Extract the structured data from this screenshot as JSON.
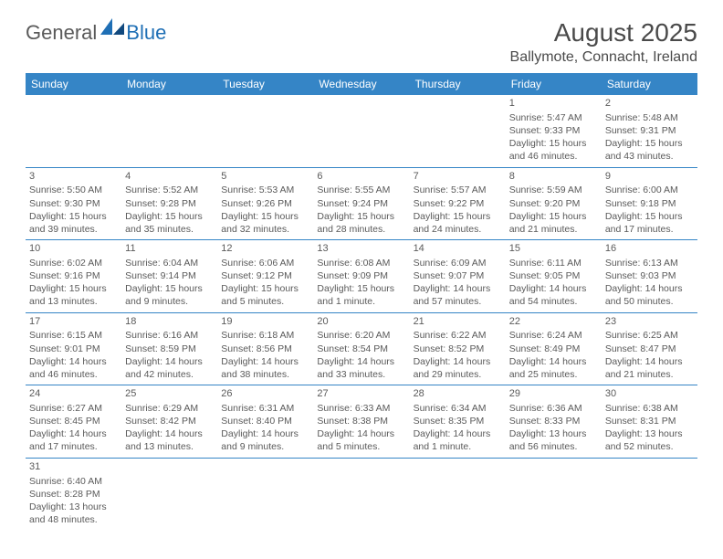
{
  "logo": {
    "general": "General",
    "blue": "Blue"
  },
  "title": "August 2025",
  "location": "Ballymote, Connacht, Ireland",
  "colors": {
    "header_bg": "#3585c6",
    "header_text": "#ffffff",
    "border": "#3585c6",
    "logo_blue": "#1f6fb5",
    "text": "#5a5a5a"
  },
  "day_headers": [
    "Sunday",
    "Monday",
    "Tuesday",
    "Wednesday",
    "Thursday",
    "Friday",
    "Saturday"
  ],
  "weeks": [
    [
      null,
      null,
      null,
      null,
      null,
      {
        "n": "1",
        "sr": "Sunrise: 5:47 AM",
        "ss": "Sunset: 9:33 PM",
        "dl": "Daylight: 15 hours and 46 minutes."
      },
      {
        "n": "2",
        "sr": "Sunrise: 5:48 AM",
        "ss": "Sunset: 9:31 PM",
        "dl": "Daylight: 15 hours and 43 minutes."
      }
    ],
    [
      {
        "n": "3",
        "sr": "Sunrise: 5:50 AM",
        "ss": "Sunset: 9:30 PM",
        "dl": "Daylight: 15 hours and 39 minutes."
      },
      {
        "n": "4",
        "sr": "Sunrise: 5:52 AM",
        "ss": "Sunset: 9:28 PM",
        "dl": "Daylight: 15 hours and 35 minutes."
      },
      {
        "n": "5",
        "sr": "Sunrise: 5:53 AM",
        "ss": "Sunset: 9:26 PM",
        "dl": "Daylight: 15 hours and 32 minutes."
      },
      {
        "n": "6",
        "sr": "Sunrise: 5:55 AM",
        "ss": "Sunset: 9:24 PM",
        "dl": "Daylight: 15 hours and 28 minutes."
      },
      {
        "n": "7",
        "sr": "Sunrise: 5:57 AM",
        "ss": "Sunset: 9:22 PM",
        "dl": "Daylight: 15 hours and 24 minutes."
      },
      {
        "n": "8",
        "sr": "Sunrise: 5:59 AM",
        "ss": "Sunset: 9:20 PM",
        "dl": "Daylight: 15 hours and 21 minutes."
      },
      {
        "n": "9",
        "sr": "Sunrise: 6:00 AM",
        "ss": "Sunset: 9:18 PM",
        "dl": "Daylight: 15 hours and 17 minutes."
      }
    ],
    [
      {
        "n": "10",
        "sr": "Sunrise: 6:02 AM",
        "ss": "Sunset: 9:16 PM",
        "dl": "Daylight: 15 hours and 13 minutes."
      },
      {
        "n": "11",
        "sr": "Sunrise: 6:04 AM",
        "ss": "Sunset: 9:14 PM",
        "dl": "Daylight: 15 hours and 9 minutes."
      },
      {
        "n": "12",
        "sr": "Sunrise: 6:06 AM",
        "ss": "Sunset: 9:12 PM",
        "dl": "Daylight: 15 hours and 5 minutes."
      },
      {
        "n": "13",
        "sr": "Sunrise: 6:08 AM",
        "ss": "Sunset: 9:09 PM",
        "dl": "Daylight: 15 hours and 1 minute."
      },
      {
        "n": "14",
        "sr": "Sunrise: 6:09 AM",
        "ss": "Sunset: 9:07 PM",
        "dl": "Daylight: 14 hours and 57 minutes."
      },
      {
        "n": "15",
        "sr": "Sunrise: 6:11 AM",
        "ss": "Sunset: 9:05 PM",
        "dl": "Daylight: 14 hours and 54 minutes."
      },
      {
        "n": "16",
        "sr": "Sunrise: 6:13 AM",
        "ss": "Sunset: 9:03 PM",
        "dl": "Daylight: 14 hours and 50 minutes."
      }
    ],
    [
      {
        "n": "17",
        "sr": "Sunrise: 6:15 AM",
        "ss": "Sunset: 9:01 PM",
        "dl": "Daylight: 14 hours and 46 minutes."
      },
      {
        "n": "18",
        "sr": "Sunrise: 6:16 AM",
        "ss": "Sunset: 8:59 PM",
        "dl": "Daylight: 14 hours and 42 minutes."
      },
      {
        "n": "19",
        "sr": "Sunrise: 6:18 AM",
        "ss": "Sunset: 8:56 PM",
        "dl": "Daylight: 14 hours and 38 minutes."
      },
      {
        "n": "20",
        "sr": "Sunrise: 6:20 AM",
        "ss": "Sunset: 8:54 PM",
        "dl": "Daylight: 14 hours and 33 minutes."
      },
      {
        "n": "21",
        "sr": "Sunrise: 6:22 AM",
        "ss": "Sunset: 8:52 PM",
        "dl": "Daylight: 14 hours and 29 minutes."
      },
      {
        "n": "22",
        "sr": "Sunrise: 6:24 AM",
        "ss": "Sunset: 8:49 PM",
        "dl": "Daylight: 14 hours and 25 minutes."
      },
      {
        "n": "23",
        "sr": "Sunrise: 6:25 AM",
        "ss": "Sunset: 8:47 PM",
        "dl": "Daylight: 14 hours and 21 minutes."
      }
    ],
    [
      {
        "n": "24",
        "sr": "Sunrise: 6:27 AM",
        "ss": "Sunset: 8:45 PM",
        "dl": "Daylight: 14 hours and 17 minutes."
      },
      {
        "n": "25",
        "sr": "Sunrise: 6:29 AM",
        "ss": "Sunset: 8:42 PM",
        "dl": "Daylight: 14 hours and 13 minutes."
      },
      {
        "n": "26",
        "sr": "Sunrise: 6:31 AM",
        "ss": "Sunset: 8:40 PM",
        "dl": "Daylight: 14 hours and 9 minutes."
      },
      {
        "n": "27",
        "sr": "Sunrise: 6:33 AM",
        "ss": "Sunset: 8:38 PM",
        "dl": "Daylight: 14 hours and 5 minutes."
      },
      {
        "n": "28",
        "sr": "Sunrise: 6:34 AM",
        "ss": "Sunset: 8:35 PM",
        "dl": "Daylight: 14 hours and 1 minute."
      },
      {
        "n": "29",
        "sr": "Sunrise: 6:36 AM",
        "ss": "Sunset: 8:33 PM",
        "dl": "Daylight: 13 hours and 56 minutes."
      },
      {
        "n": "30",
        "sr": "Sunrise: 6:38 AM",
        "ss": "Sunset: 8:31 PM",
        "dl": "Daylight: 13 hours and 52 minutes."
      }
    ],
    [
      {
        "n": "31",
        "sr": "Sunrise: 6:40 AM",
        "ss": "Sunset: 8:28 PM",
        "dl": "Daylight: 13 hours and 48 minutes."
      },
      null,
      null,
      null,
      null,
      null,
      null
    ]
  ]
}
